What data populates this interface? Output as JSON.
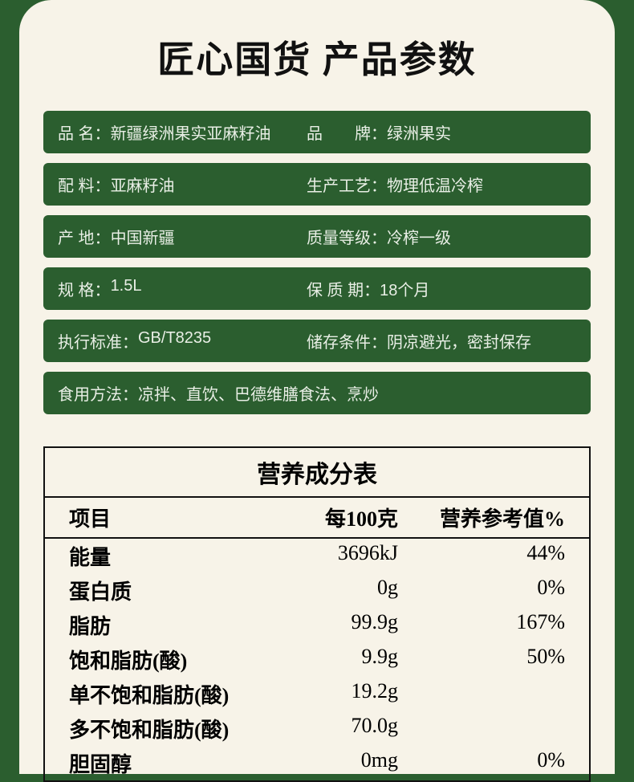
{
  "title": "匠心国货 产品参数",
  "specs": [
    {
      "llabel": "品 名：",
      "lvalue": "新疆绿洲果实亚麻籽油",
      "rlabel": "品　　牌：",
      "rvalue": "绿洲果实"
    },
    {
      "llabel": "配 料：",
      "lvalue": "亚麻籽油",
      "rlabel": "生产工艺：",
      "rvalue": "物理低温冷榨"
    },
    {
      "llabel": "产 地：",
      "lvalue": "中国新疆",
      "rlabel": "质量等级：",
      "rvalue": "冷榨一级"
    },
    {
      "llabel": "规 格：",
      "lvalue": "1.5L",
      "rlabel": "保 质 期：",
      "rvalue": "18个月"
    },
    {
      "llabel": "执行标准：",
      "lvalue": "GB/T8235",
      "rlabel": "储存条件：",
      "rvalue": "阴凉避光，密封保存"
    },
    {
      "llabel": "食用方法：",
      "lvalue": "凉拌、直饮、巴德维膳食法、烹炒",
      "single": true
    }
  ],
  "nutrition": {
    "title": "营养成分表",
    "columns": [
      "项目",
      "每100克",
      "营养参考值%"
    ],
    "rows": [
      {
        "name": "能量",
        "per100g": "3696kJ",
        "nrv": "44%"
      },
      {
        "name": "蛋白质",
        "per100g": "0g",
        "nrv": "0%"
      },
      {
        "name": "脂肪",
        "per100g": "99.9g",
        "nrv": "167%"
      },
      {
        "name": "饱和脂肪(酸)",
        "per100g": "9.9g",
        "nrv": "50%"
      },
      {
        "name": "单不饱和脂肪(酸)",
        "per100g": "19.2g",
        "nrv": ""
      },
      {
        "name": "多不饱和脂肪(酸)",
        "per100g": "70.0g",
        "nrv": ""
      },
      {
        "name": "胆固醇",
        "per100g": "0mg",
        "nrv": "0%"
      }
    ]
  },
  "colors": {
    "page_bg": "#2b5e2f",
    "card_bg": "#f7f3e8",
    "row_bg": "#2b5e2f",
    "row_text": "#e9efe6",
    "text": "#111111",
    "border": "#111111"
  }
}
